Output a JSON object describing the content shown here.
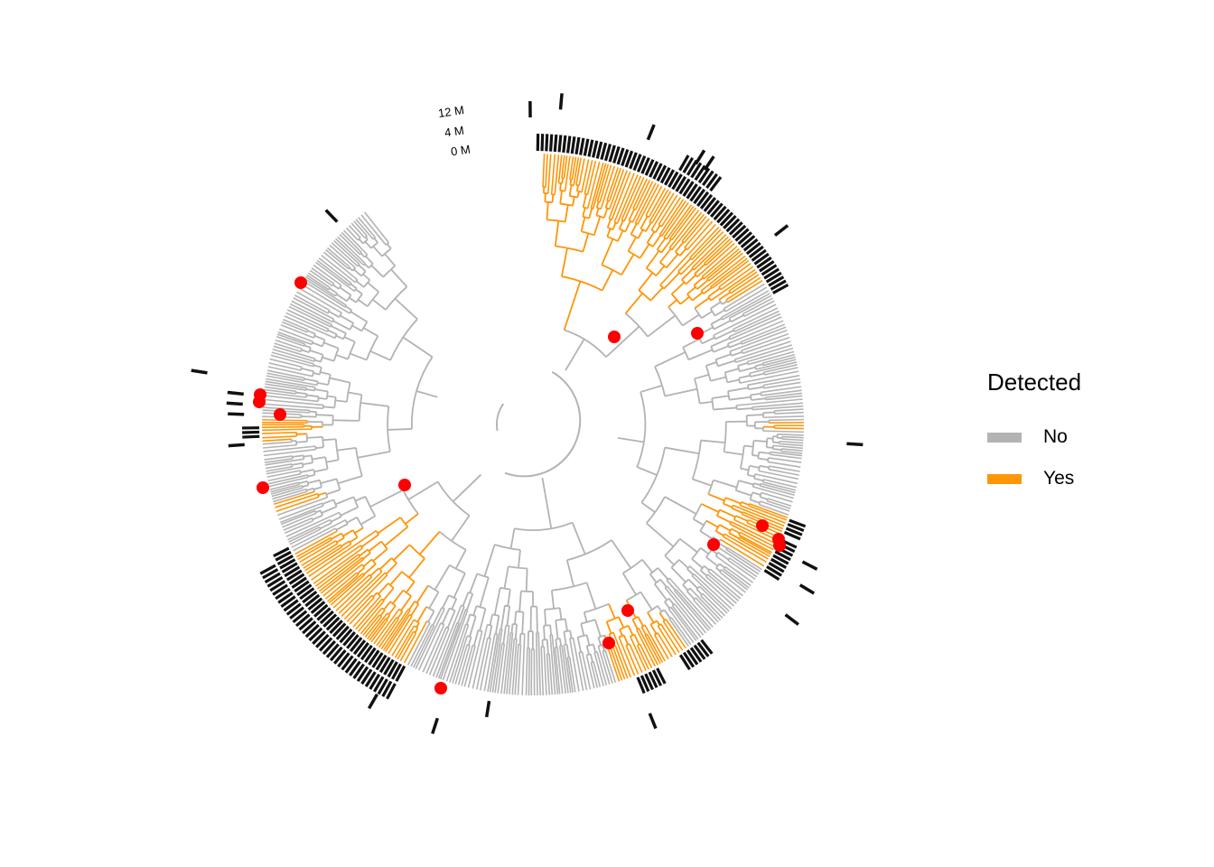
{
  "colors": {
    "no": "#b3b3b3",
    "yes": "#ff9507",
    "node": "#ff0000",
    "ring": "#111111",
    "background": "#ffffff"
  },
  "legend": {
    "title": "Detected",
    "items": [
      {
        "label": "No",
        "color": "#b3b3b3"
      },
      {
        "label": "Yes",
        "color": "#ff9507"
      }
    ]
  },
  "scale_labels": [
    "12 M",
    "4 M",
    "0 M"
  ],
  "tree": {
    "layout": "circular",
    "open_gap": true,
    "detected_clades": [
      "top",
      "left-lower",
      "bottom-right",
      "right-lower",
      "upper-left-small"
    ],
    "annotation": "bar-ring"
  }
}
